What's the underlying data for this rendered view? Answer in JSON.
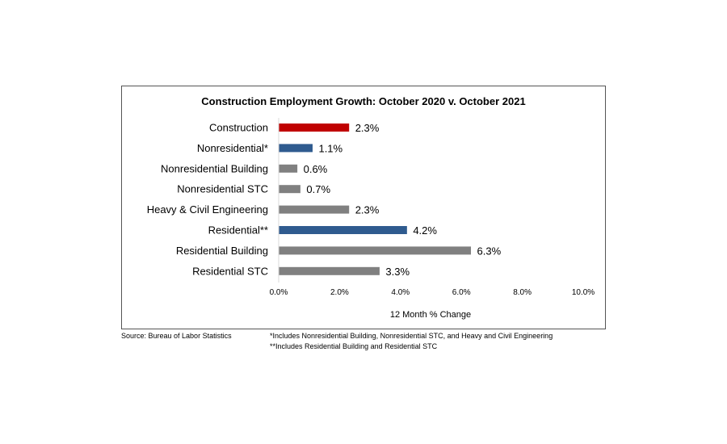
{
  "chart_data": {
    "type": "bar",
    "orientation": "horizontal",
    "title": "Construction Employment Growth: October 2020 v. October 2021",
    "xlabel": "12 Month % Change",
    "ylabel": "",
    "categories": [
      "Construction",
      "Nonresidential*",
      "Nonresidential Building",
      "Nonresidential STC",
      "Heavy & Civil Engineering",
      "Residential**",
      "Residential Building",
      "Residential STC"
    ],
    "values": [
      2.3,
      1.1,
      0.6,
      0.7,
      2.3,
      4.2,
      6.3,
      3.3
    ],
    "data_labels": [
      "2.3%",
      "1.1%",
      "0.6%",
      "0.7%",
      "2.3%",
      "4.2%",
      "6.3%",
      "3.3%"
    ],
    "bar_colors": [
      "#c00000",
      "#2f5b8f",
      "#808080",
      "#808080",
      "#808080",
      "#2f5b8f",
      "#808080",
      "#808080"
    ],
    "xlim": [
      0,
      10
    ],
    "xticks": [
      0,
      2,
      4,
      6,
      8,
      10
    ],
    "xtick_labels": [
      "0.0%",
      "2.0%",
      "4.0%",
      "6.0%",
      "8.0%",
      "10.0%"
    ],
    "grid": false,
    "legend": "none"
  },
  "notes": {
    "source": "Source:  Bureau of Labor Statistics",
    "footnote1": "*Includes Nonresidential Building, Nonresidential STC, and Heavy and Civil Engineering",
    "footnote2": "**Includes Residential Building and Residential STC"
  }
}
